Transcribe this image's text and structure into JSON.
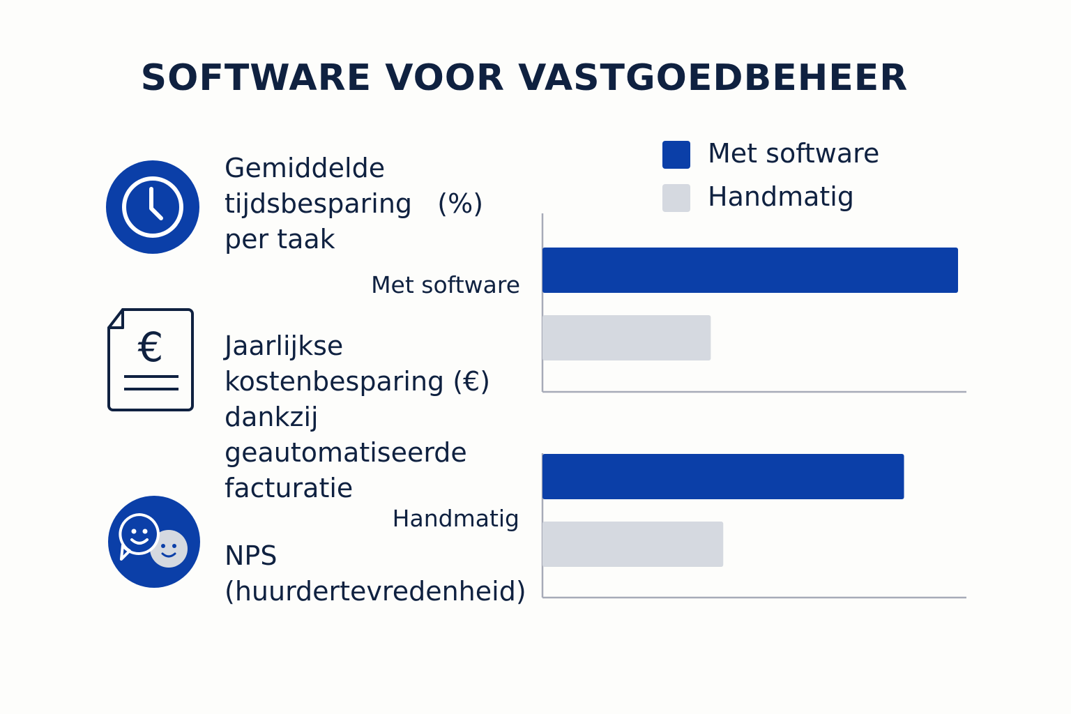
{
  "title": "SOFTWARE VOOR VASTGOEDBEHEER",
  "metrics": [
    {
      "icon": "clock-icon",
      "lines": [
        "Gemiddelde",
        "tijdsbesparing   (%)",
        "per taak"
      ]
    },
    {
      "icon": "euro-document-icon",
      "lines": [
        "Jaarlijkse",
        "kostenbesparing (€)",
        "dankzij",
        "geautomatiseerde",
        "facturatie"
      ]
    },
    {
      "icon": "smiley-chat-icon",
      "lines": [
        "NPS",
        "(huurdertevredenheid)"
      ]
    }
  ],
  "legend": [
    {
      "label": "Met software",
      "color": "#0b3fa8"
    },
    {
      "label": "Handmatig",
      "color": "#d5d9e0"
    }
  ],
  "chart_data": {
    "type": "bar",
    "orientation": "horizontal",
    "groups": [
      {
        "label": "Met software",
        "values": [
          100,
          40.5
        ]
      },
      {
        "label": "Handmatig",
        "values": [
          87,
          43.5
        ]
      }
    ],
    "series": [
      {
        "name": "Met software",
        "color": "#0b3fa8"
      },
      {
        "name": "Handmatig",
        "color": "#d5d9e0"
      }
    ],
    "xlim": [
      0,
      102
    ],
    "grid": false,
    "legend_position": "top-right"
  },
  "colors": {
    "primary": "#0b3fa8",
    "secondary": "#d5d9e0",
    "text": "#0f2140",
    "axis": "#a7abb8"
  }
}
